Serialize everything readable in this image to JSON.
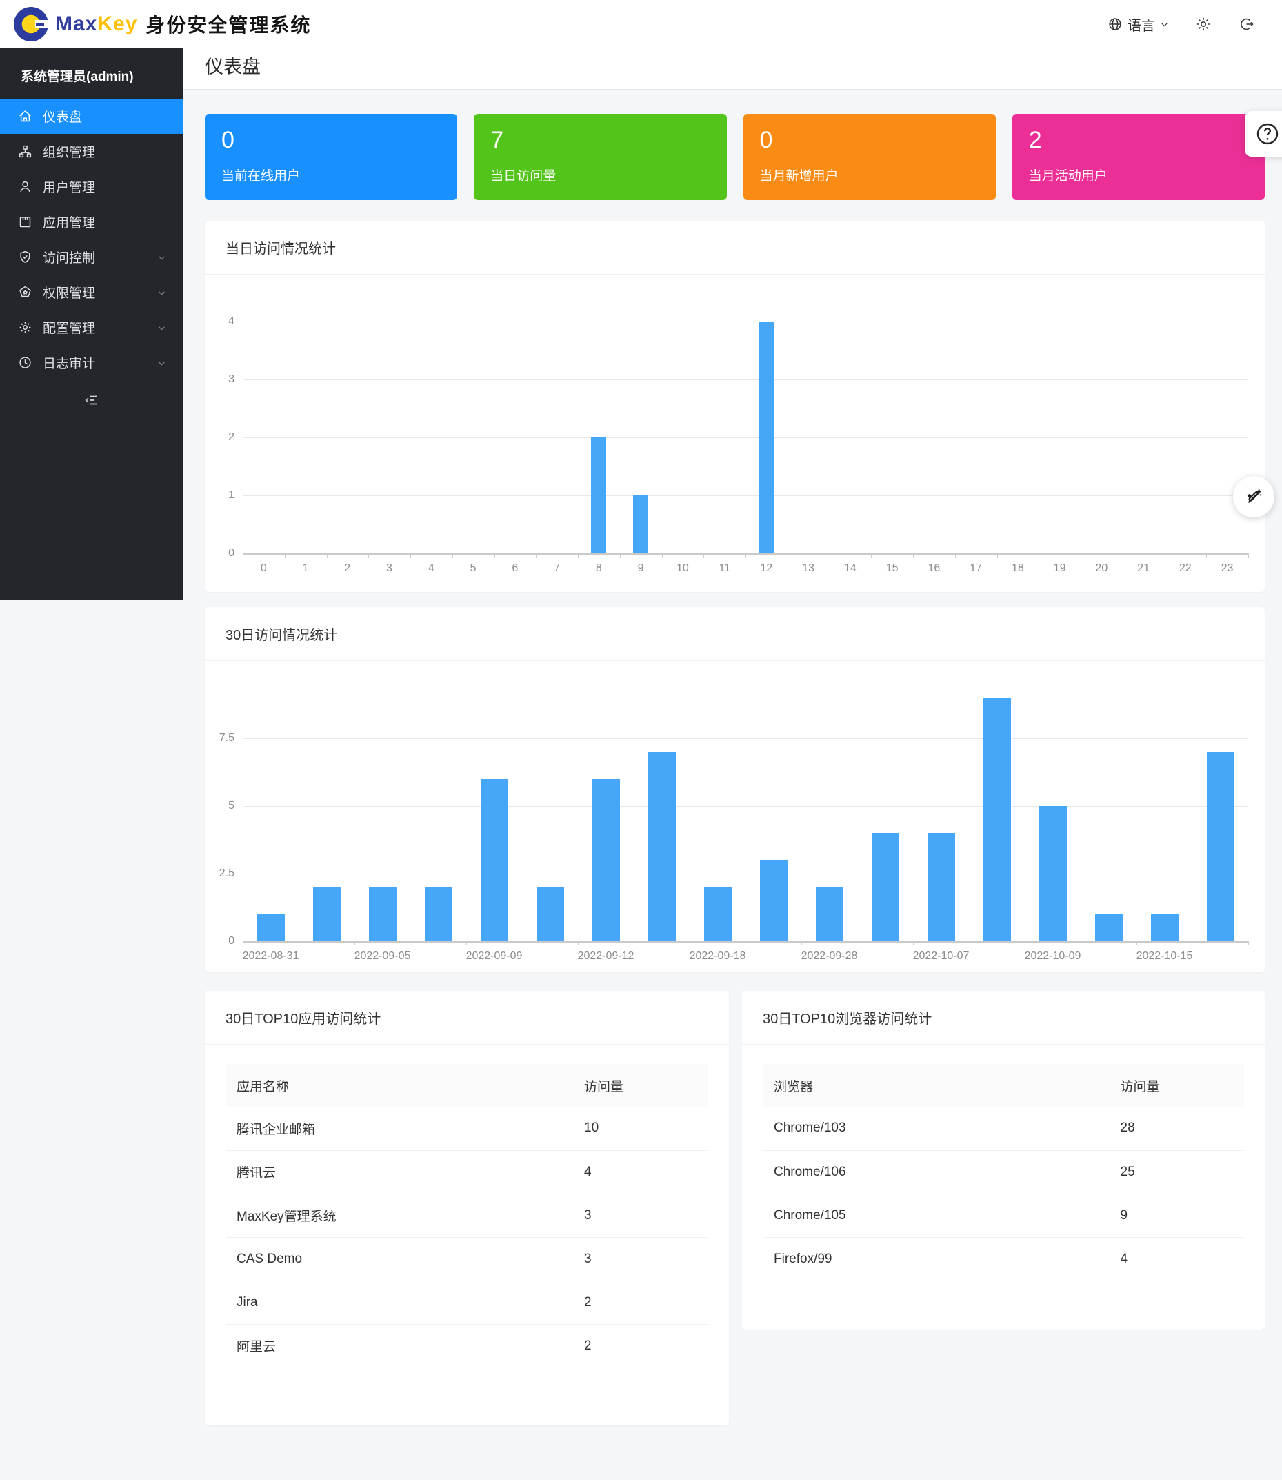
{
  "header": {
    "brand": {
      "max": "Max",
      "key": "Key",
      "suffix": "身份安全管理系统"
    },
    "actions": {
      "language": "语言"
    }
  },
  "sidebar": {
    "user": "系统管理员(admin)",
    "items": [
      {
        "id": "dashboard",
        "label": "仪表盘",
        "icon": "home-icon",
        "active": true,
        "chevron": false
      },
      {
        "id": "org",
        "label": "组织管理",
        "icon": "org-icon",
        "active": false,
        "chevron": false
      },
      {
        "id": "users",
        "label": "用户管理",
        "icon": "user-icon",
        "active": false,
        "chevron": false
      },
      {
        "id": "apps",
        "label": "应用管理",
        "icon": "app-icon",
        "active": false,
        "chevron": false
      },
      {
        "id": "access",
        "label": "访问控制",
        "icon": "shield-icon",
        "active": false,
        "chevron": true
      },
      {
        "id": "permission",
        "label": "权限管理",
        "icon": "badge-icon",
        "active": false,
        "chevron": true
      },
      {
        "id": "config",
        "label": "配置管理",
        "icon": "gear-icon",
        "active": false,
        "chevron": true
      },
      {
        "id": "audit",
        "label": "日志审计",
        "icon": "clock-icon",
        "active": false,
        "chevron": true
      }
    ]
  },
  "breadcrumb": {
    "home": "home",
    "sep": "/",
    "current": "仪表盘"
  },
  "page_title": "仪表盘",
  "stat_cards": [
    {
      "value": "0",
      "label": "当前在线用户",
      "color": "#1890ff"
    },
    {
      "value": "7",
      "label": "当日访问量",
      "color": "#52c41a"
    },
    {
      "value": "0",
      "label": "当月新增用户",
      "color": "#fa8c16"
    },
    {
      "value": "2",
      "label": "当月活动用户",
      "color": "#eb2f96"
    }
  ],
  "chart_data": [
    {
      "type": "bar",
      "title": "当日访问情况统计",
      "categories": [
        "0",
        "1",
        "2",
        "3",
        "4",
        "5",
        "6",
        "7",
        "8",
        "9",
        "10",
        "11",
        "12",
        "13",
        "14",
        "15",
        "16",
        "17",
        "18",
        "19",
        "20",
        "21",
        "22",
        "23"
      ],
      "values": [
        0,
        0,
        0,
        0,
        0,
        0,
        0,
        0,
        2,
        1,
        0,
        0,
        4,
        0,
        0,
        0,
        0,
        0,
        0,
        0,
        0,
        0,
        0,
        0
      ],
      "xlabel": "",
      "ylabel": "",
      "ylim": [
        0,
        4
      ],
      "yticks": [
        0,
        1,
        2,
        3,
        4
      ],
      "grid": true,
      "bar_color": "#46a6f7"
    },
    {
      "type": "bar",
      "title": "30日访问情况统计",
      "categories": [
        "2022-08-31",
        "",
        "2022-09-05",
        "",
        "2022-09-09",
        "",
        "2022-09-12",
        "",
        "2022-09-18",
        "",
        "2022-09-28",
        "",
        "2022-10-07",
        "",
        "2022-10-09",
        "",
        "2022-10-15",
        ""
      ],
      "values": [
        1,
        2,
        2,
        2,
        6,
        2,
        6,
        7,
        2,
        3,
        2,
        4,
        4,
        9,
        5,
        1,
        1,
        7
      ],
      "xlabel": "",
      "ylabel": "",
      "ylim": [
        0,
        9
      ],
      "yticks": [
        0,
        2.5,
        5,
        7.5
      ],
      "grid": true,
      "bar_color": "#46a6f7"
    }
  ],
  "tables": [
    {
      "title": "30日TOP10应用访问统计",
      "headers": [
        "应用名称",
        "访问量"
      ],
      "rows": [
        [
          "腾讯企业邮箱",
          "10"
        ],
        [
          "腾讯云",
          "4"
        ],
        [
          "MaxKey管理系统",
          "3"
        ],
        [
          "CAS Demo",
          "3"
        ],
        [
          "Jira",
          "2"
        ],
        [
          "阿里云",
          "2"
        ]
      ]
    },
    {
      "title": "30日TOP10浏览器访问统计",
      "headers": [
        "浏览器",
        "访问量"
      ],
      "rows": [
        [
          "Chrome/103",
          "28"
        ],
        [
          "Chrome/106",
          "25"
        ],
        [
          "Chrome/105",
          "9"
        ],
        [
          "Firefox/99",
          "4"
        ]
      ]
    }
  ],
  "colors": {
    "accent": "#1890ff",
    "bar": "#46a6f7",
    "sidebar_bg": "#23272c"
  }
}
